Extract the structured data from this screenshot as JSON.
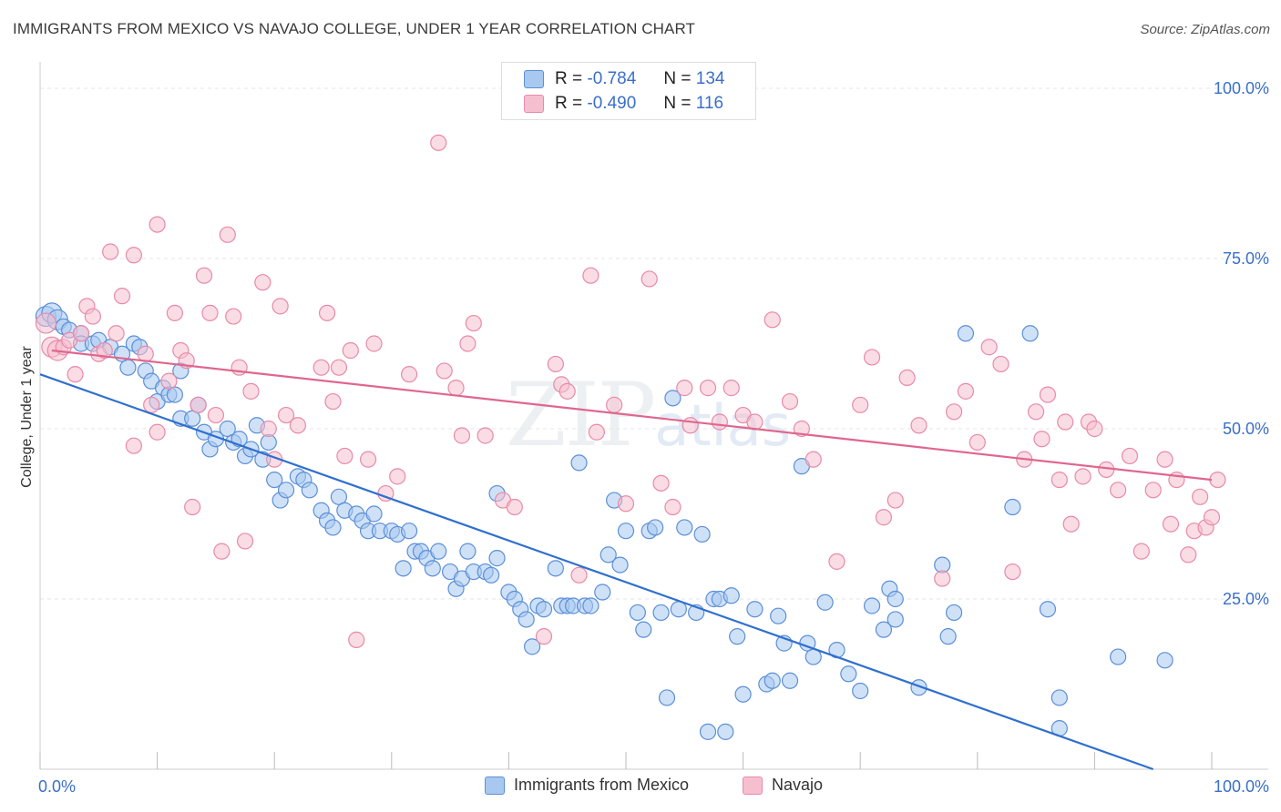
{
  "title": "IMMIGRANTS FROM MEXICO VS NAVAJO COLLEGE, UNDER 1 YEAR CORRELATION CHART",
  "source": "Source: ZipAtlas.com",
  "watermark": {
    "zip": "ZIP",
    "atlas": "atlas"
  },
  "legend": {
    "rows": [
      {
        "r_label": "R =",
        "r_value": "-0.784",
        "n_label": "N =",
        "n_value": "134"
      },
      {
        "r_label": "R =",
        "r_value": "-0.490",
        "n_label": "N =",
        "n_value": "116"
      }
    ]
  },
  "colors": {
    "blue_fill": "#a8c8f0",
    "blue_stroke": "#5b8fd8",
    "blue_line": "#2f6fce",
    "pink_fill": "#f6bfd0",
    "pink_stroke": "#e88aa8",
    "pink_line": "#e0668e",
    "tick_label": "#3a6fc9",
    "grid": "#e6e6e6"
  },
  "chart_data": {
    "type": "scatter",
    "title": "IMMIGRANTS FROM MEXICO VS NAVAJO COLLEGE, UNDER 1 YEAR CORRELATION CHART",
    "xlabel": "",
    "ylabel": "College, Under 1 year",
    "xlim": [
      0,
      100
    ],
    "ylim": [
      0,
      100
    ],
    "x_ticks": [
      "0.0%",
      "100.0%"
    ],
    "y_ticks": [
      {
        "value": 100,
        "label": "100.0%"
      },
      {
        "value": 75,
        "label": "75.0%"
      },
      {
        "value": 50,
        "label": "50.0%"
      },
      {
        "value": 25,
        "label": "25.0%"
      }
    ],
    "grid": true,
    "legend_position": "top-center",
    "series": [
      {
        "name": "Immigrants from Mexico",
        "color": "#a8c8f0",
        "trend": {
          "x": [
            0,
            95
          ],
          "y": [
            58.0,
            0
          ]
        },
        "points": [
          [
            0.5,
            66.5
          ],
          [
            1,
            67
          ],
          [
            1.5,
            66
          ],
          [
            2,
            65
          ],
          [
            2.5,
            64.5
          ],
          [
            3.5,
            64
          ],
          [
            3.5,
            62.5
          ],
          [
            4.5,
            62.5
          ],
          [
            5,
            63
          ],
          [
            6,
            62
          ],
          [
            7,
            61
          ],
          [
            7.5,
            59
          ],
          [
            8,
            62.5
          ],
          [
            8.5,
            62
          ],
          [
            9,
            58.5
          ],
          [
            9.5,
            57
          ],
          [
            10,
            54
          ],
          [
            10.5,
            56
          ],
          [
            11,
            55
          ],
          [
            11.5,
            55
          ],
          [
            12,
            58.5
          ],
          [
            12,
            51.5
          ],
          [
            13,
            51.5
          ],
          [
            13.5,
            53.5
          ],
          [
            14,
            49.5
          ],
          [
            14.5,
            47
          ],
          [
            15,
            48.5
          ],
          [
            16,
            50
          ],
          [
            16.5,
            48
          ],
          [
            17,
            48.5
          ],
          [
            17.5,
            46
          ],
          [
            18,
            47
          ],
          [
            18.5,
            50.5
          ],
          [
            19,
            45.5
          ],
          [
            19.5,
            48
          ],
          [
            20,
            42.5
          ],
          [
            20.5,
            39.5
          ],
          [
            21,
            41
          ],
          [
            22,
            43
          ],
          [
            22.5,
            42.5
          ],
          [
            23,
            41
          ],
          [
            24,
            38
          ],
          [
            24.5,
            36.5
          ],
          [
            25,
            35.5
          ],
          [
            25.5,
            40
          ],
          [
            26,
            38
          ],
          [
            27,
            37.5
          ],
          [
            27.5,
            36.5
          ],
          [
            28,
            35
          ],
          [
            28.5,
            37.5
          ],
          [
            29,
            35
          ],
          [
            30,
            35
          ],
          [
            30.5,
            34.5
          ],
          [
            31,
            29.5
          ],
          [
            31.5,
            35
          ],
          [
            32,
            32
          ],
          [
            32.5,
            32
          ],
          [
            33,
            31
          ],
          [
            33.5,
            29.5
          ],
          [
            34,
            32
          ],
          [
            35,
            29
          ],
          [
            35.5,
            26.5
          ],
          [
            36,
            28
          ],
          [
            36.5,
            32
          ],
          [
            37,
            29
          ],
          [
            38,
            29
          ],
          [
            38.5,
            28.5
          ],
          [
            39,
            31
          ],
          [
            39,
            40.5
          ],
          [
            40,
            26
          ],
          [
            40.5,
            25
          ],
          [
            41,
            23.5
          ],
          [
            41.5,
            22
          ],
          [
            42,
            18
          ],
          [
            42.5,
            24
          ],
          [
            43,
            23.5
          ],
          [
            44,
            29.5
          ],
          [
            44.5,
            24
          ],
          [
            45,
            24
          ],
          [
            45.5,
            24
          ],
          [
            46,
            45
          ],
          [
            46.5,
            24
          ],
          [
            47,
            24
          ],
          [
            48,
            26
          ],
          [
            48.5,
            31.5
          ],
          [
            49,
            39.5
          ],
          [
            49.5,
            30
          ],
          [
            50,
            35
          ],
          [
            51,
            23
          ],
          [
            51.5,
            20.5
          ],
          [
            52,
            35
          ],
          [
            52.5,
            35.5
          ],
          [
            53,
            23
          ],
          [
            53.5,
            10.5
          ],
          [
            54,
            54.5
          ],
          [
            54.5,
            23.5
          ],
          [
            55,
            35.5
          ],
          [
            56,
            23
          ],
          [
            56.5,
            34.5
          ],
          [
            57,
            5.5
          ],
          [
            57.5,
            25
          ],
          [
            58,
            25
          ],
          [
            58.5,
            5.5
          ],
          [
            59,
            25.5
          ],
          [
            59.5,
            19.5
          ],
          [
            60,
            11
          ],
          [
            61,
            23.5
          ],
          [
            62,
            12.5
          ],
          [
            62.5,
            13
          ],
          [
            63,
            22.5
          ],
          [
            63.5,
            18.5
          ],
          [
            64,
            13
          ],
          [
            65,
            44.5
          ],
          [
            65.5,
            18.5
          ],
          [
            66,
            16.5
          ],
          [
            67,
            24.5
          ],
          [
            68,
            17.5
          ],
          [
            69,
            14
          ],
          [
            70,
            11.5
          ],
          [
            71,
            24
          ],
          [
            72,
            20.5
          ],
          [
            72.5,
            26.5
          ],
          [
            73,
            25
          ],
          [
            73,
            22
          ],
          [
            75,
            12
          ],
          [
            77,
            30
          ],
          [
            77.5,
            19.5
          ],
          [
            78,
            23
          ],
          [
            79,
            64
          ],
          [
            83,
            38.5
          ],
          [
            84.5,
            64
          ],
          [
            86,
            23.5
          ],
          [
            87,
            10.5
          ],
          [
            87,
            6
          ],
          [
            92,
            16.5
          ],
          [
            96,
            16
          ]
        ]
      },
      {
        "name": "Navajo",
        "color": "#f6bfd0",
        "trend": {
          "x": [
            1,
            100
          ],
          "y": [
            61.5,
            42.5
          ]
        },
        "points": [
          [
            0.5,
            65.5
          ],
          [
            1,
            62
          ],
          [
            1.5,
            61.5
          ],
          [
            2,
            62
          ],
          [
            2.5,
            63
          ],
          [
            3,
            58
          ],
          [
            3.5,
            64
          ],
          [
            4,
            68
          ],
          [
            4.5,
            66.5
          ],
          [
            5,
            61
          ],
          [
            5.5,
            61.5
          ],
          [
            6,
            76
          ],
          [
            6.5,
            64
          ],
          [
            7,
            69.5
          ],
          [
            8,
            75.5
          ],
          [
            8,
            47.5
          ],
          [
            9,
            61
          ],
          [
            9.5,
            53.5
          ],
          [
            10,
            80
          ],
          [
            10,
            49.5
          ],
          [
            11,
            57
          ],
          [
            11.5,
            67
          ],
          [
            12,
            61.5
          ],
          [
            12.5,
            60
          ],
          [
            13,
            38.5
          ],
          [
            13.5,
            53.5
          ],
          [
            14,
            72.5
          ],
          [
            14.5,
            67
          ],
          [
            15,
            52
          ],
          [
            15.5,
            32
          ],
          [
            16,
            78.5
          ],
          [
            16.5,
            66.5
          ],
          [
            17,
            59
          ],
          [
            17.5,
            33.5
          ],
          [
            18,
            55.5
          ],
          [
            19,
            71.5
          ],
          [
            19.5,
            50
          ],
          [
            20,
            45.5
          ],
          [
            20.5,
            68
          ],
          [
            21,
            52
          ],
          [
            22,
            50.5
          ],
          [
            24,
            59
          ],
          [
            24.5,
            67
          ],
          [
            25,
            54
          ],
          [
            25.5,
            59
          ],
          [
            26,
            46
          ],
          [
            26.5,
            61.5
          ],
          [
            27,
            19
          ],
          [
            28,
            45.5
          ],
          [
            28.5,
            62.5
          ],
          [
            29.5,
            40.5
          ],
          [
            30.5,
            43
          ],
          [
            31.5,
            58
          ],
          [
            34,
            92
          ],
          [
            34.5,
            58.5
          ],
          [
            35.5,
            56
          ],
          [
            36,
            49
          ],
          [
            36.5,
            62.5
          ],
          [
            37,
            65.5
          ],
          [
            38,
            49
          ],
          [
            39.5,
            39.5
          ],
          [
            40.5,
            38.5
          ],
          [
            43,
            19.5
          ],
          [
            44,
            59.5
          ],
          [
            44.5,
            56.5
          ],
          [
            45,
            55.5
          ],
          [
            46,
            28.5
          ],
          [
            47,
            72.5
          ],
          [
            47.5,
            49.5
          ],
          [
            49,
            53.5
          ],
          [
            50,
            39
          ],
          [
            52,
            72
          ],
          [
            53,
            42
          ],
          [
            54,
            38.5
          ],
          [
            55,
            56
          ],
          [
            55.5,
            50.5
          ],
          [
            57,
            56
          ],
          [
            58,
            51
          ],
          [
            59,
            56
          ],
          [
            60,
            52
          ],
          [
            61,
            51
          ],
          [
            62.5,
            66
          ],
          [
            64,
            54
          ],
          [
            65,
            50
          ],
          [
            66,
            45.5
          ],
          [
            68,
            30.5
          ],
          [
            70,
            53.5
          ],
          [
            71,
            60.5
          ],
          [
            72,
            37
          ],
          [
            73,
            39.5
          ],
          [
            74,
            57.5
          ],
          [
            75,
            50.5
          ],
          [
            77,
            28
          ],
          [
            78,
            52.5
          ],
          [
            79,
            55.5
          ],
          [
            80,
            48
          ],
          [
            81,
            62
          ],
          [
            82,
            59.5
          ],
          [
            83,
            29
          ],
          [
            84,
            45.5
          ],
          [
            85,
            52.5
          ],
          [
            85.5,
            48.5
          ],
          [
            86,
            55
          ],
          [
            87,
            42.5
          ],
          [
            87.5,
            51
          ],
          [
            88,
            36
          ],
          [
            89,
            43
          ],
          [
            89.5,
            51
          ],
          [
            90,
            50
          ],
          [
            91,
            44
          ],
          [
            92,
            41
          ],
          [
            93,
            46
          ],
          [
            94,
            32
          ],
          [
            95,
            41
          ],
          [
            96,
            45.5
          ],
          [
            96.5,
            36
          ],
          [
            97,
            42.5
          ],
          [
            98,
            31.5
          ],
          [
            98.5,
            35
          ],
          [
            99,
            40
          ],
          [
            99.5,
            35.5
          ],
          [
            100,
            37
          ],
          [
            100.5,
            42.5
          ]
        ]
      }
    ]
  },
  "bottom_legend": [
    {
      "label": "Immigrants from Mexico"
    },
    {
      "label": "Navajo"
    }
  ]
}
